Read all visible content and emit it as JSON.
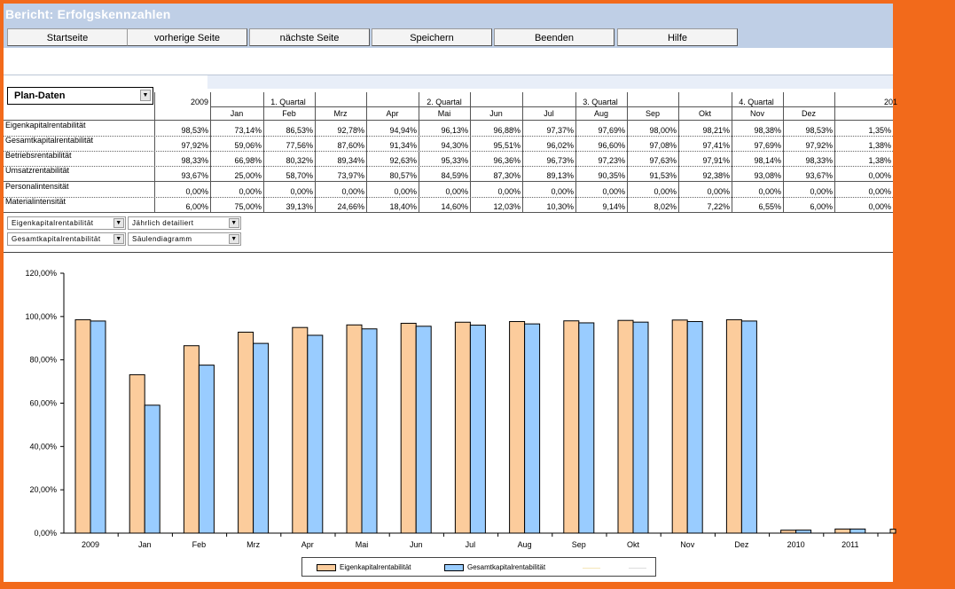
{
  "window": {
    "title": "Bericht: Erfolgskennzahlen"
  },
  "nav": [
    {
      "label": "Startseite"
    },
    {
      "label": "vorherige Seite"
    },
    {
      "label": "nächste Seite"
    },
    {
      "label": "Speichern"
    },
    {
      "label": "Beenden"
    },
    {
      "label": "Hilfe"
    }
  ],
  "selector": {
    "value": "Plan-Daten"
  },
  "table": {
    "year_label": "2009",
    "next_year_label": "201",
    "quarters": [
      "1. Quartal",
      "2. Quartal",
      "3. Quartal",
      "4. Quartal"
    ],
    "months": [
      "Jan",
      "Feb",
      "Mrz",
      "Apr",
      "Mai",
      "Jun",
      "Jul",
      "Aug",
      "Sep",
      "Okt",
      "Nov",
      "Dez"
    ],
    "rows": [
      {
        "label": "Eigenkapitalrentabilität",
        "values": [
          "98,53%",
          "73,14%",
          "86,53%",
          "92,78%",
          "94,94%",
          "96,13%",
          "96,88%",
          "97,37%",
          "97,69%",
          "98,00%",
          "98,21%",
          "98,38%",
          "98,53%",
          "1,35%"
        ]
      },
      {
        "label": "Gesamtkapitalrentabilität",
        "values": [
          "97,92%",
          "59,06%",
          "77,56%",
          "87,60%",
          "91,34%",
          "94,30%",
          "95,51%",
          "96,02%",
          "96,60%",
          "97,08%",
          "97,41%",
          "97,69%",
          "97,92%",
          "1,38%"
        ]
      },
      {
        "label": "Betriebsrentabilität",
        "values": [
          "98,33%",
          "66,98%",
          "80,32%",
          "89,34%",
          "92,63%",
          "95,33%",
          "96,36%",
          "96,73%",
          "97,23%",
          "97,63%",
          "97,91%",
          "98,14%",
          "98,33%",
          "1,38%"
        ]
      },
      {
        "label": "Umsatzrentabilität",
        "values": [
          "93,67%",
          "25,00%",
          "58,70%",
          "73,97%",
          "80,57%",
          "84,59%",
          "87,30%",
          "89,13%",
          "90,35%",
          "91,53%",
          "92,38%",
          "93,08%",
          "93,67%",
          "0,00%"
        ]
      },
      {
        "label": "Personalintensität",
        "values": [
          "0,00%",
          "0,00%",
          "0,00%",
          "0,00%",
          "0,00%",
          "0,00%",
          "0,00%",
          "0,00%",
          "0,00%",
          "0,00%",
          "0,00%",
          "0,00%",
          "0,00%",
          "0,00%"
        ]
      },
      {
        "label": "Materialintensität",
        "values": [
          "6,00%",
          "75,00%",
          "39,13%",
          "24,66%",
          "18,40%",
          "14,60%",
          "12,03%",
          "10,30%",
          "9,14%",
          "8,02%",
          "7,22%",
          "6,55%",
          "6,00%",
          "0,00%"
        ]
      }
    ]
  },
  "controls": {
    "series1": "Eigenkapitalrentabilität",
    "series2": "Gesamtkapitalrentabilität",
    "period": "Jährlich detailiert",
    "chart_type": "Säulendiagramm"
  },
  "chart_data": {
    "type": "bar",
    "categories": [
      "2009",
      "Jan",
      "Feb",
      "Mrz",
      "Apr",
      "Mai",
      "Jun",
      "Jul",
      "Aug",
      "Sep",
      "Okt",
      "Nov",
      "Dez",
      "2010",
      "2011"
    ],
    "series": [
      {
        "name": "Eigenkapitalrentabilität",
        "color": "#fccc9c",
        "values": [
          98.53,
          73.14,
          86.53,
          92.78,
          94.94,
          96.13,
          96.88,
          97.37,
          97.69,
          98.0,
          98.21,
          98.38,
          98.53,
          1.35,
          1.9
        ]
      },
      {
        "name": "Gesamtkapitalrentabilität",
        "color": "#99ccff",
        "values": [
          97.92,
          59.06,
          77.56,
          87.6,
          91.34,
          94.3,
          95.51,
          96.02,
          96.6,
          97.08,
          97.41,
          97.69,
          97.92,
          1.38,
          1.9
        ]
      }
    ],
    "y_ticks": [
      "0,00%",
      "20,00%",
      "40,00%",
      "60,00%",
      "80,00%",
      "100,00%",
      "120,00%"
    ],
    "ylim": [
      0,
      120
    ],
    "grid": false,
    "legend_position": "bottom"
  }
}
